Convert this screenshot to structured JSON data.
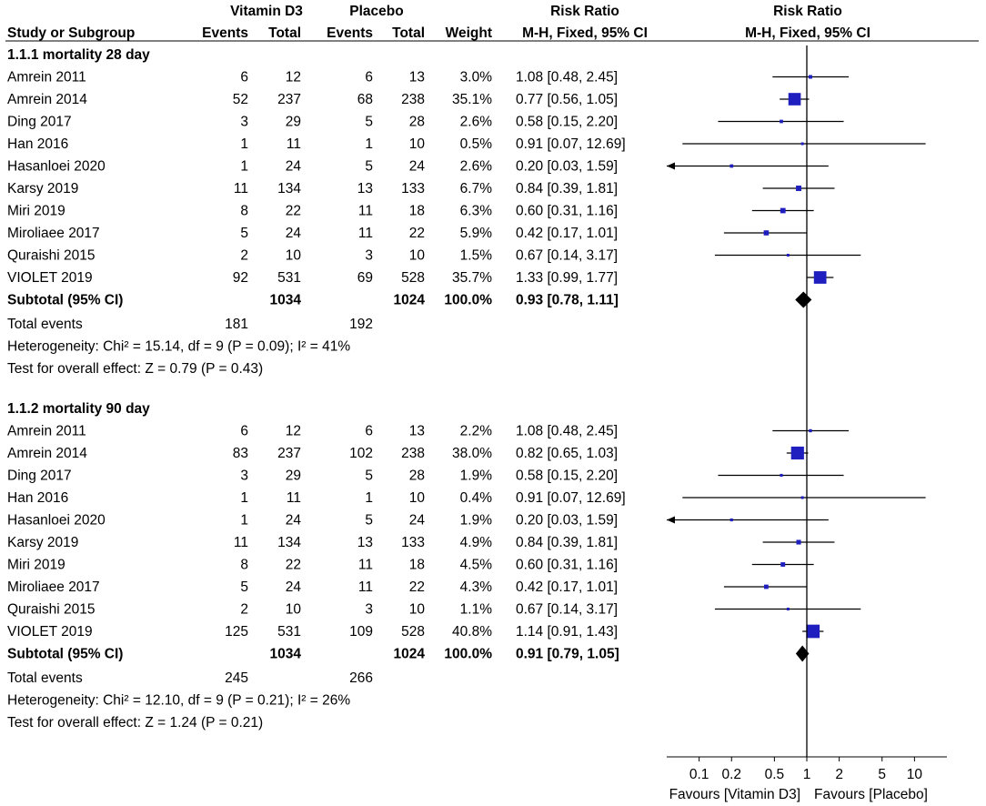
{
  "headers": {
    "group1": "Vitamin D3",
    "group2": "Placebo",
    "rr_title": "Risk Ratio",
    "plot_title": "Risk Ratio",
    "study": "Study or Subgroup",
    "events1": "Events",
    "total1": "Total",
    "events2": "Events",
    "total2": "Total",
    "weight": "Weight",
    "method": "M-H, Fixed, 95% CI",
    "plot_method": "M-H, Fixed, 95% CI"
  },
  "chart_data": {
    "type": "forest",
    "scale": "log",
    "x_range": [
      0.05,
      20
    ],
    "reference_value": 1,
    "axis_ticks": [
      {
        "value": 0.1,
        "label": "0.1"
      },
      {
        "value": 0.2,
        "label": "0.2"
      },
      {
        "value": 0.5,
        "label": "0.5"
      },
      {
        "value": 1,
        "label": "1"
      },
      {
        "value": 2,
        "label": "2"
      },
      {
        "value": 5,
        "label": "5"
      },
      {
        "value": 10,
        "label": "10"
      }
    ],
    "favours_left": "Favours [Vitamin D3]",
    "favours_right": "Favours [Placebo]",
    "subgroups": [
      {
        "title": "1.1.1 mortality 28 day",
        "studies": [
          {
            "name": "Amrein 2011",
            "e1": "6",
            "t1": "12",
            "e2": "6",
            "t2": "13",
            "weight": "3.0%",
            "ci_text": "1.08 [0.48, 2.45]",
            "rr": 1.08,
            "lo": 0.48,
            "hi": 2.45,
            "w": 3.0
          },
          {
            "name": "Amrein 2014",
            "e1": "52",
            "t1": "237",
            "e2": "68",
            "t2": "238",
            "weight": "35.1%",
            "ci_text": "0.77 [0.56, 1.05]",
            "rr": 0.77,
            "lo": 0.56,
            "hi": 1.05,
            "w": 35.1
          },
          {
            "name": "Ding 2017",
            "e1": "3",
            "t1": "29",
            "e2": "5",
            "t2": "28",
            "weight": "2.6%",
            "ci_text": "0.58 [0.15, 2.20]",
            "rr": 0.58,
            "lo": 0.15,
            "hi": 2.2,
            "w": 2.6
          },
          {
            "name": "Han 2016",
            "e1": "1",
            "t1": "11",
            "e2": "1",
            "t2": "10",
            "weight": "0.5%",
            "ci_text": "0.91 [0.07, 12.69]",
            "rr": 0.91,
            "lo": 0.07,
            "hi": 12.69,
            "w": 0.5
          },
          {
            "name": "Hasanloei 2020",
            "e1": "1",
            "t1": "24",
            "e2": "5",
            "t2": "24",
            "weight": "2.6%",
            "ci_text": "0.20 [0.03, 1.59]",
            "rr": 0.2,
            "lo": 0.03,
            "hi": 1.59,
            "w": 2.6
          },
          {
            "name": "Karsy 2019",
            "e1": "11",
            "t1": "134",
            "e2": "13",
            "t2": "133",
            "weight": "6.7%",
            "ci_text": "0.84 [0.39, 1.81]",
            "rr": 0.84,
            "lo": 0.39,
            "hi": 1.81,
            "w": 6.7
          },
          {
            "name": "Miri 2019",
            "e1": "8",
            "t1": "22",
            "e2": "11",
            "t2": "18",
            "weight": "6.3%",
            "ci_text": "0.60 [0.31, 1.16]",
            "rr": 0.6,
            "lo": 0.31,
            "hi": 1.16,
            "w": 6.3
          },
          {
            "name": "Miroliaee 2017",
            "e1": "5",
            "t1": "24",
            "e2": "11",
            "t2": "22",
            "weight": "5.9%",
            "ci_text": "0.42 [0.17, 1.01]",
            "rr": 0.42,
            "lo": 0.17,
            "hi": 1.01,
            "w": 5.9
          },
          {
            "name": "Quraishi 2015",
            "e1": "2",
            "t1": "10",
            "e2": "3",
            "t2": "10",
            "weight": "1.5%",
            "ci_text": "0.67 [0.14, 3.17]",
            "rr": 0.67,
            "lo": 0.14,
            "hi": 3.17,
            "w": 1.5
          },
          {
            "name": "VIOLET 2019",
            "e1": "92",
            "t1": "531",
            "e2": "69",
            "t2": "528",
            "weight": "35.7%",
            "ci_text": "1.33 [0.99, 1.77]",
            "rr": 1.33,
            "lo": 0.99,
            "hi": 1.77,
            "w": 35.7
          }
        ],
        "subtotal": {
          "label": "Subtotal (95% CI)",
          "t1": "1034",
          "t2": "1024",
          "weight": "100.0%",
          "ci_text": "0.93 [0.78, 1.11]",
          "rr": 0.93,
          "lo": 0.78,
          "hi": 1.11
        },
        "total_events": {
          "label": "Total events",
          "e1": "181",
          "e2": "192"
        },
        "heterogeneity": "Heterogeneity: Chi² = 15.14, df = 9 (P = 0.09); I² = 41%",
        "overall": "Test for overall effect: Z = 0.79 (P = 0.43)"
      },
      {
        "title": "1.1.2 mortality 90 day",
        "studies": [
          {
            "name": "Amrein 2011",
            "e1": "6",
            "t1": "12",
            "e2": "6",
            "t2": "13",
            "weight": "2.2%",
            "ci_text": "1.08 [0.48, 2.45]",
            "rr": 1.08,
            "lo": 0.48,
            "hi": 2.45,
            "w": 2.2
          },
          {
            "name": "Amrein 2014",
            "e1": "83",
            "t1": "237",
            "e2": "102",
            "t2": "238",
            "weight": "38.0%",
            "ci_text": "0.82 [0.65, 1.03]",
            "rr": 0.82,
            "lo": 0.65,
            "hi": 1.03,
            "w": 38.0
          },
          {
            "name": "Ding 2017",
            "e1": "3",
            "t1": "29",
            "e2": "5",
            "t2": "28",
            "weight": "1.9%",
            "ci_text": "0.58 [0.15, 2.20]",
            "rr": 0.58,
            "lo": 0.15,
            "hi": 2.2,
            "w": 1.9
          },
          {
            "name": "Han 2016",
            "e1": "1",
            "t1": "11",
            "e2": "1",
            "t2": "10",
            "weight": "0.4%",
            "ci_text": "0.91 [0.07, 12.69]",
            "rr": 0.91,
            "lo": 0.07,
            "hi": 12.69,
            "w": 0.4
          },
          {
            "name": "Hasanloei 2020",
            "e1": "1",
            "t1": "24",
            "e2": "5",
            "t2": "24",
            "weight": "1.9%",
            "ci_text": "0.20 [0.03, 1.59]",
            "rr": 0.2,
            "lo": 0.03,
            "hi": 1.59,
            "w": 1.9
          },
          {
            "name": "Karsy 2019",
            "e1": "11",
            "t1": "134",
            "e2": "13",
            "t2": "133",
            "weight": "4.9%",
            "ci_text": "0.84 [0.39, 1.81]",
            "rr": 0.84,
            "lo": 0.39,
            "hi": 1.81,
            "w": 4.9
          },
          {
            "name": "Miri 2019",
            "e1": "8",
            "t1": "22",
            "e2": "11",
            "t2": "18",
            "weight": "4.5%",
            "ci_text": "0.60 [0.31, 1.16]",
            "rr": 0.6,
            "lo": 0.31,
            "hi": 1.16,
            "w": 4.5
          },
          {
            "name": "Miroliaee 2017",
            "e1": "5",
            "t1": "24",
            "e2": "11",
            "t2": "22",
            "weight": "4.3%",
            "ci_text": "0.42 [0.17, 1.01]",
            "rr": 0.42,
            "lo": 0.17,
            "hi": 1.01,
            "w": 4.3
          },
          {
            "name": "Quraishi 2015",
            "e1": "2",
            "t1": "10",
            "e2": "3",
            "t2": "10",
            "weight": "1.1%",
            "ci_text": "0.67 [0.14, 3.17]",
            "rr": 0.67,
            "lo": 0.14,
            "hi": 3.17,
            "w": 1.1
          },
          {
            "name": "VIOLET 2019",
            "e1": "125",
            "t1": "531",
            "e2": "109",
            "t2": "528",
            "weight": "40.8%",
            "ci_text": "1.14 [0.91, 1.43]",
            "rr": 1.14,
            "lo": 0.91,
            "hi": 1.43,
            "w": 40.8
          }
        ],
        "subtotal": {
          "label": "Subtotal (95% CI)",
          "t1": "1034",
          "t2": "1024",
          "weight": "100.0%",
          "ci_text": "0.91 [0.79, 1.05]",
          "rr": 0.91,
          "lo": 0.79,
          "hi": 1.05
        },
        "total_events": {
          "label": "Total events",
          "e1": "245",
          "e2": "266"
        },
        "heterogeneity": "Heterogeneity: Chi² = 12.10, df = 9 (P = 0.21); I² = 26%",
        "overall": "Test for overall effect: Z = 1.24 (P = 0.21)"
      }
    ],
    "colors": {
      "square": "#1f1fbf",
      "diamond": "#000000",
      "line": "#000000"
    }
  }
}
